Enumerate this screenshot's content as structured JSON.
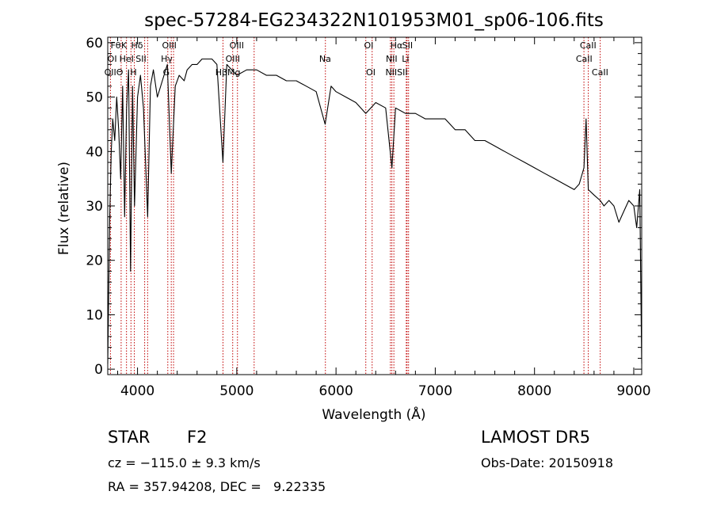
{
  "chart_data": {
    "type": "line",
    "title": "spec-57284-EG234322N101953M01_sp06-106.fits",
    "xlabel": "Wavelength (Å)",
    "ylabel": "Flux (relative)",
    "xlim": [
      3700,
      9080
    ],
    "ylim": [
      -1,
      61
    ],
    "xticks": [
      4000,
      5000,
      6000,
      7000,
      8000,
      9000
    ],
    "yticks": [
      0,
      10,
      20,
      30,
      40,
      50,
      60
    ],
    "grid": false,
    "series": [
      {
        "x": [
          3700,
          3720,
          3735,
          3750,
          3770,
          3790,
          3810,
          3830,
          3850,
          3870,
          3890,
          3910,
          3930,
          3950,
          3970,
          4000,
          4030,
          4060,
          4102,
          4130,
          4160,
          4200,
          4250,
          4300,
          4340,
          4380,
          4420,
          4470,
          4500,
          4550,
          4600,
          4650,
          4700,
          4750,
          4800,
          4861,
          4900,
          4950,
          5000,
          5100,
          5200,
          5300,
          5400,
          5500,
          5600,
          5700,
          5800,
          5890,
          5950,
          6000,
          6100,
          6200,
          6300,
          6400,
          6500,
          6563,
          6600,
          6700,
          6800,
          6900,
          7000,
          7100,
          7200,
          7300,
          7400,
          7500,
          7600,
          7700,
          7800,
          7900,
          8000,
          8100,
          8200,
          8300,
          8400,
          8450,
          8498,
          8520,
          8542,
          8600,
          8662,
          8700,
          8750,
          8800,
          8850,
          8900,
          8950,
          9000,
          9030,
          9060,
          9080
        ],
        "y": [
          1,
          28,
          40,
          46,
          42,
          50,
          44,
          35,
          52,
          28,
          48,
          55,
          18,
          52,
          30,
          50,
          54,
          48,
          28,
          52,
          55,
          50,
          53,
          56,
          36,
          52,
          54,
          53,
          55,
          56,
          56,
          57,
          57,
          57,
          56,
          38,
          56,
          55,
          54,
          55,
          55,
          54,
          54,
          53,
          53,
          52,
          51,
          45,
          52,
          51,
          50,
          49,
          47,
          49,
          48,
          37,
          48,
          47,
          47,
          46,
          46,
          46,
          44,
          44,
          42,
          42,
          41,
          40,
          39,
          38,
          37,
          36,
          35,
          34,
          33,
          34,
          37,
          46,
          33,
          32,
          31,
          30,
          31,
          30,
          27,
          29,
          31,
          30,
          26,
          33,
          1
        ]
      }
    ],
    "lines": [
      {
        "x": 3727,
        "labels": [
          "OII"
        ]
      },
      {
        "x": 3835,
        "labels": [
          "Fθ"
        ]
      },
      {
        "x": 3889,
        "labels": [
          "HeI"
        ]
      },
      {
        "x": 3934,
        "labels": [
          "K"
        ]
      },
      {
        "x": 3968,
        "labels": [
          "H"
        ]
      },
      {
        "x": 4072,
        "labels": [
          "SII"
        ]
      },
      {
        "x": 4102,
        "labels": [
          "Hδ"
        ]
      },
      {
        "x": 4305,
        "labels": [
          "G"
        ]
      },
      {
        "x": 4340,
        "labels": [
          "Hγ"
        ]
      },
      {
        "x": 4363,
        "labels": [
          "OIII"
        ]
      },
      {
        "x": 4861,
        "labels": [
          "Hβ"
        ]
      },
      {
        "x": 4959,
        "labels": [
          "OIII"
        ]
      },
      {
        "x": 5007,
        "labels": [
          "OIII"
        ]
      },
      {
        "x": 5175,
        "labels": [
          "Mg"
        ]
      },
      {
        "x": 5893,
        "labels": [
          "Na"
        ]
      },
      {
        "x": 6300,
        "labels": [
          "OI"
        ]
      },
      {
        "x": 6364,
        "labels": [
          "OI"
        ]
      },
      {
        "x": 6548,
        "labels": [
          "NII"
        ]
      },
      {
        "x": 6563,
        "labels": [
          "Hα"
        ]
      },
      {
        "x": 6583,
        "labels": [
          "NII"
        ]
      },
      {
        "x": 6708,
        "labels": [
          "Li"
        ]
      },
      {
        "x": 6716,
        "labels": [
          "SII"
        ]
      },
      {
        "x": 6731,
        "labels": [
          "SII"
        ]
      },
      {
        "x": 8498,
        "labels": [
          "CaII"
        ]
      },
      {
        "x": 8542,
        "labels": [
          "CaII"
        ]
      },
      {
        "x": 8662,
        "labels": [
          "CaII"
        ]
      }
    ],
    "line_label_rows": [
      [
        {
          "x": 3780,
          "text": "Fθ"
        },
        {
          "x": 3865,
          "text": "K"
        },
        {
          "x": 3995,
          "text": "Hδ"
        },
        {
          "x": 4320,
          "text": "OIII"
        },
        {
          "x": 5000,
          "text": "OIII"
        },
        {
          "x": 6330,
          "text": "OI"
        },
        {
          "x": 6610,
          "text": "Hα"
        },
        {
          "x": 6720,
          "text": "SII"
        },
        {
          "x": 8540,
          "text": "CaII"
        }
      ],
      [
        {
          "x": 3745,
          "text": "OI"
        },
        {
          "x": 3890,
          "text": "HeI"
        },
        {
          "x": 4035,
          "text": "SII"
        },
        {
          "x": 4295,
          "text": "Hγ"
        },
        {
          "x": 4960,
          "text": "OIII"
        },
        {
          "x": 5890,
          "text": "Na"
        },
        {
          "x": 6560,
          "text": "NII"
        },
        {
          "x": 6700,
          "text": "Li"
        },
        {
          "x": 8500,
          "text": "CaII"
        }
      ],
      [
        {
          "x": 3760,
          "text": "OIIΘ"
        },
        {
          "x": 3960,
          "text": "H"
        },
        {
          "x": 4290,
          "text": "G"
        },
        {
          "x": 4910,
          "text": "HβMg"
        },
        {
          "x": 6350,
          "text": "OI"
        },
        {
          "x": 6610,
          "text": "NIISII"
        },
        {
          "x": 8660,
          "text": "CaII"
        }
      ]
    ]
  },
  "info": {
    "object_class": "STAR",
    "subclass": "F2",
    "survey": "LAMOST DR5",
    "redshift_text": "cz = −115.0 ± 9.3 km/s",
    "obs_date_text": "Obs-Date: 20150918",
    "coords_text": "RA = 357.94208, DEC =   9.22335"
  }
}
